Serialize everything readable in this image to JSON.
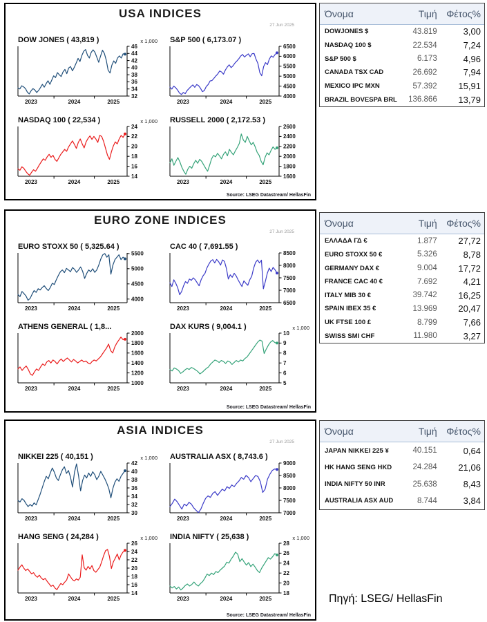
{
  "page": {
    "background": "#ffffff",
    "footer_source": "Πηγή: LSEG/ HellasFin"
  },
  "panels": [
    {
      "title": "USA INDICES",
      "date": "27 Jun 2025",
      "source": "Source: LSEG Datastream/ HellasFin",
      "table": {
        "headers": [
          "Όνομα",
          "Τιμή",
          "Φέτος%"
        ],
        "rows": [
          [
            "DOWJONES $",
            "43.819",
            "3,00"
          ],
          [
            "NASDAQ 100 $",
            "22.534",
            "7,24"
          ],
          [
            "S&P 500 $",
            "6.173",
            "4,96"
          ],
          [
            "CANADA TSX CAD",
            "26.692",
            "7,94"
          ],
          [
            "MEXICO IPC MXN",
            "57.392",
            "15,91"
          ],
          [
            "BRAZIL BOVESPA BRL",
            "136.866",
            "13,79"
          ]
        ]
      }
    },
    {
      "title": "EURO ZONE INDICES",
      "date": "27 Jun 2025",
      "source": "Source: LSEG Datastream/ HellasFin",
      "table": {
        "headers": [
          "Όνομα",
          "Τιμή",
          "Φέτος%"
        ],
        "rows": [
          [
            "ΕΛΛΑΔΑ ΓΔ €",
            "1.877",
            "27,72"
          ],
          [
            "EURO STOXX 50 €",
            "5.326",
            "8,78"
          ],
          [
            "GERMANY DAX €",
            "9.004",
            "17,72"
          ],
          [
            "FRANCE CAC 40 €",
            "7.692",
            "4,21"
          ],
          [
            "ITALY MIB 30 €",
            "39.742",
            "16,25"
          ],
          [
            "SPAIN IBEX 35 €",
            "13.969",
            "20,47"
          ],
          [
            "UK FTSE 100 £",
            "8.799",
            "7,66"
          ],
          [
            "SWISS SMI CHF",
            "11.980",
            "3,27"
          ]
        ]
      }
    },
    {
      "title": "ASIA INDICES",
      "date": "27 Jun 2025",
      "source": "Source: LSEG Datastream/ HellasFin",
      "table": {
        "headers": [
          "Όνομα",
          "Τιμή",
          "Φέτος%"
        ],
        "rows": [
          [
            "JAPAN NIKKEI 225 ¥",
            "40.151",
            "0,64"
          ],
          [
            "HK HANG SENG HKD",
            "24.284",
            "21,06"
          ],
          [
            "INDIA NIFTY 50 INR",
            "25.638",
            "8,43"
          ],
          [
            "AUSTRALIA ASX AUD",
            "8.744",
            "3,84"
          ]
        ]
      }
    }
  ],
  "chart_data": [
    {
      "id": "dow-jones",
      "panel": 0,
      "type": "line",
      "title": "DOW JONES ( 43,819 )",
      "unit": "x 1,000",
      "color": "#1f4e79",
      "x_labels": [
        "2023",
        "2024",
        "2025"
      ],
      "ylim": [
        32,
        46
      ],
      "yticks": [
        "46",
        "44",
        "42",
        "40",
        "38",
        "36",
        "34",
        "32"
      ],
      "values": [
        34.3,
        34.0,
        34.9,
        34.6,
        34.1,
        33.1,
        32.6,
        33.5,
        34.1,
        33.7,
        33.0,
        33.6,
        34.4,
        35.3,
        34.5,
        35.5,
        36.3,
        35.3,
        36.5,
        37.7,
        37.2,
        38.6,
        38.0,
        37.5,
        38.8,
        39.5,
        38.3,
        39.9,
        40.3,
        39.1,
        40.1,
        41.3,
        42.6,
        41.7,
        43.4,
        44.6,
        45.1,
        43.5,
        42.7,
        44.3,
        45.0,
        44.3,
        42.9,
        41.5,
        43.3,
        44.9,
        44.0,
        42.1,
        39.3,
        38.5,
        40.7,
        41.9,
        41.2,
        42.7,
        43.3,
        42.7,
        43.9,
        43.8
      ]
    },
    {
      "id": "sp-500",
      "panel": 0,
      "type": "line",
      "title": "S&P 500  ( 6,173.07 )",
      "unit": "",
      "color": "#3b3bc8",
      "x_labels": [
        "2023",
        "2024",
        "2025"
      ],
      "ylim": [
        4000,
        6500
      ],
      "yticks": [
        "6500",
        "6000",
        "5500",
        "5000",
        "4500",
        "4000"
      ],
      "values": [
        4450,
        4350,
        4500,
        4420,
        4300,
        4150,
        4080,
        4180,
        4120,
        4280,
        4380,
        4480,
        4560,
        4440,
        4580,
        4520,
        4390,
        4220,
        4280,
        4480,
        4580,
        4760,
        4780,
        4890,
        5010,
        5110,
        5260,
        5210,
        5100,
        5310,
        5460,
        5570,
        5430,
        5520,
        5660,
        5760,
        5870,
        6010,
        6090,
        5960,
        6050,
        6120,
        5980,
        6130,
        6140,
        5860,
        5640,
        5180,
        5020,
        5480,
        5680,
        5580,
        5860,
        6020,
        5950,
        6090,
        6173
      ]
    },
    {
      "id": "nasdaq-100",
      "panel": 0,
      "type": "line",
      "title": "NASDAQ 100 ( 22,534 )",
      "unit": "x 1,000",
      "color": "#ea1c1c",
      "x_labels": [
        "2023",
        "2024",
        "2025"
      ],
      "ylim": [
        14,
        24
      ],
      "yticks": [
        "24",
        "22",
        "20",
        "18",
        "16",
        "14"
      ],
      "values": [
        15.5,
        15.2,
        15.9,
        15.6,
        15.0,
        14.5,
        14.2,
        14.8,
        15.3,
        15.0,
        15.6,
        16.3,
        16.9,
        17.5,
        17.2,
        17.9,
        18.4,
        17.8,
        18.2,
        17.4,
        17.0,
        17.7,
        18.4,
        18.9,
        19.4,
        19.0,
        19.9,
        20.5,
        21.1,
        20.4,
        19.6,
        20.8,
        21.5,
        20.5,
        19.7,
        20.9,
        21.6,
        22.1,
        21.4,
        22.0,
        21.5,
        20.8,
        22.2,
        22.0,
        21.0,
        19.6,
        18.2,
        17.4,
        18.9,
        20.1,
        20.9,
        20.5,
        21.5,
        22.2,
        21.8,
        22.5
      ]
    },
    {
      "id": "russell-2000",
      "panel": 0,
      "type": "line",
      "title": "RUSSELL 2000  ( 2,172.53 )",
      "unit": "",
      "color": "#35a379",
      "x_labels": [
        "2023",
        "2024",
        "2025"
      ],
      "ylim": [
        1600,
        2600
      ],
      "yticks": [
        "2600",
        "2400",
        "2200",
        "2000",
        "1800",
        "1600"
      ],
      "values": [
        1870,
        1950,
        1820,
        1900,
        1975,
        1890,
        1780,
        1700,
        1640,
        1740,
        1800,
        1760,
        1850,
        1920,
        1860,
        1940,
        1900,
        1830,
        1760,
        1700,
        1820,
        1950,
        2020,
        1990,
        2060,
        2010,
        1950,
        2040,
        2090,
        2010,
        2140,
        2080,
        2030,
        2110,
        2180,
        2260,
        2450,
        2330,
        2280,
        2400,
        2310,
        2230,
        2280,
        2190,
        2080,
        2020,
        1900,
        1830,
        1980,
        2070,
        2030,
        2120,
        2190,
        2140,
        2172
      ]
    },
    {
      "id": "euro-stoxx-50",
      "panel": 1,
      "type": "line",
      "title": "EURO STOXX 50 ( 5,325.64 )",
      "unit": "",
      "color": "#1f4e79",
      "x_labels": [
        "2023",
        "2024",
        "2025"
      ],
      "ylim": [
        3880,
        5520
      ],
      "yticks": [
        "5500",
        "5000",
        "4500",
        "4000"
      ],
      "values": [
        4150,
        4080,
        4250,
        4180,
        4100,
        3960,
        4020,
        4160,
        4280,
        4220,
        4340,
        4300,
        4380,
        4440,
        4350,
        4280,
        4380,
        4520,
        4480,
        4640,
        4780,
        4900,
        4960,
        4870,
        5010,
        4960,
        4900,
        5040,
        4980,
        4880,
        4960,
        5060,
        4920,
        4680,
        4840,
        4960,
        4900,
        5000,
        4880,
        4960,
        5120,
        5320,
        5460,
        5500,
        5380,
        5460,
        4820,
        5120,
        5300,
        5380,
        5460,
        5300,
        5380,
        5326
      ]
    },
    {
      "id": "cac-40",
      "panel": 1,
      "type": "line",
      "title": "CAC 40  ( 7,691.55 )",
      "unit": "",
      "color": "#3b3bc8",
      "x_labels": [
        "2023",
        "2024",
        "2025"
      ],
      "ylim": [
        6500,
        8500
      ],
      "yticks": [
        "8500",
        "8000",
        "7500",
        "7000",
        "6500"
      ],
      "values": [
        7300,
        7150,
        7420,
        7280,
        7100,
        6820,
        6950,
        7180,
        7350,
        7280,
        7450,
        7400,
        7500,
        7420,
        7300,
        7180,
        7420,
        7580,
        7680,
        7900,
        8050,
        8180,
        8230,
        8100,
        8240,
        8150,
        8010,
        8220,
        8160,
        7880,
        7450,
        7620,
        7520,
        7680,
        7580,
        7420,
        7280,
        7150,
        7380,
        7280,
        7200,
        7420,
        7560,
        7890,
        8120,
        8220,
        8100,
        8210,
        7060,
        7350,
        7680,
        7890,
        7750,
        7920,
        7820,
        7692
      ]
    },
    {
      "id": "athens-general",
      "panel": 1,
      "type": "line",
      "title": "ATHENS GENERAL ( 1,8...",
      "unit": "",
      "color": "#ea1c1c",
      "x_labels": [
        "2023",
        "2024",
        "2025"
      ],
      "ylim": [
        1000,
        2000
      ],
      "yticks": [
        "2000",
        "1800",
        "1600",
        "1400",
        "1200",
        "1000"
      ],
      "values": [
        1280,
        1320,
        1250,
        1300,
        1340,
        1270,
        1180,
        1150,
        1220,
        1280,
        1250,
        1320,
        1380,
        1350,
        1420,
        1450,
        1400,
        1460,
        1430,
        1380,
        1440,
        1480,
        1430,
        1470,
        1500,
        1460,
        1420,
        1470,
        1440,
        1400,
        1430,
        1460,
        1420,
        1440,
        1400,
        1380,
        1430,
        1460,
        1440,
        1480,
        1520,
        1580,
        1640,
        1700,
        1780,
        1650,
        1600,
        1720,
        1800,
        1860,
        1920,
        1870,
        1877
      ]
    },
    {
      "id": "dax-kurs",
      "panel": 1,
      "type": "line",
      "title": "DAX KURS  ( 9,004.1 )",
      "unit": "x 1,000",
      "color": "#35a379",
      "x_labels": [
        "2023",
        "2024",
        "2025"
      ],
      "ylim": [
        5,
        10
      ],
      "yticks": [
        "10",
        "9",
        "8",
        "7",
        "6",
        "5"
      ],
      "values": [
        6.35,
        6.2,
        6.5,
        6.4,
        6.25,
        5.95,
        6.1,
        6.3,
        6.45,
        6.35,
        6.55,
        6.45,
        6.3,
        6.15,
        5.9,
        6.05,
        6.25,
        6.45,
        6.6,
        6.9,
        7.1,
        7.3,
        7.2,
        7.05,
        7.25,
        7.15,
        6.95,
        7.2,
        7.1,
        6.85,
        7.05,
        7.25,
        7.1,
        7.3,
        7.2,
        7.45,
        7.6,
        7.9,
        8.2,
        8.5,
        8.8,
        9.1,
        9.3,
        9.2,
        7.95,
        8.4,
        8.8,
        9.1,
        9.25,
        9.05,
        9.0
      ]
    },
    {
      "id": "nikkei-225",
      "panel": 2,
      "type": "line",
      "title": "NIKKEI 225 ( 40,151 )",
      "unit": "x 1,000",
      "color": "#1f4e79",
      "x_labels": [
        "2023",
        "2024",
        "2025"
      ],
      "ylim": [
        30,
        42
      ],
      "yticks": [
        "42",
        "40",
        "38",
        "36",
        "34",
        "32",
        "30"
      ],
      "values": [
        33.0,
        32.6,
        33.4,
        33.0,
        32.2,
        31.5,
        32.0,
        31.6,
        32.4,
        31.9,
        33.2,
        34.5,
        36.0,
        37.5,
        38.8,
        38.2,
        39.6,
        40.8,
        39.8,
        38.4,
        37.8,
        39.2,
        40.4,
        41.1,
        39.5,
        40.2,
        38.6,
        36.2,
        39.8,
        41.8,
        38.9,
        35.3,
        37.8,
        39.1,
        38.4,
        39.6,
        38.8,
        39.9,
        39.2,
        38.0,
        38.8,
        40.0,
        39.1,
        38.2,
        37.1,
        35.8,
        33.6,
        35.9,
        37.4,
        38.2,
        37.6,
        38.8,
        39.5,
        40.15
      ]
    },
    {
      "id": "australia-asx",
      "panel": 2,
      "type": "line",
      "title": "AUSTRALIA ASX  ( 8,743.6 )",
      "unit": "",
      "color": "#3b3bc8",
      "x_labels": [
        "2023",
        "2024",
        "2025"
      ],
      "ylim": [
        7000,
        9000
      ],
      "yticks": [
        "9000",
        "8500",
        "8000",
        "7500",
        "7000"
      ],
      "values": [
        7250,
        7380,
        7550,
        7450,
        7300,
        7150,
        7350,
        7280,
        7420,
        7350,
        7200,
        7100,
        7010,
        7150,
        7380,
        7580,
        7680,
        7620,
        7780,
        7850,
        7700,
        7830,
        7950,
        7880,
        8050,
        7980,
        8120,
        8050,
        8180,
        8280,
        8420,
        8350,
        8500,
        8420,
        8250,
        8380,
        8500,
        8460,
        8250,
        7820,
        7950,
        8350,
        8550,
        8700,
        8760,
        8744
      ]
    },
    {
      "id": "hang-seng",
      "panel": 2,
      "type": "line",
      "title": "HANG SENG ( 24,284 )",
      "unit": "x 1,000",
      "color": "#ea1c1c",
      "x_labels": [
        "2023",
        "2024",
        "2025"
      ],
      "ylim": [
        14,
        26
      ],
      "yticks": [
        "26",
        "24",
        "22",
        "20",
        "18",
        "16",
        "14"
      ],
      "values": [
        19.5,
        20.2,
        20.8,
        20.0,
        19.4,
        19.8,
        19.2,
        18.6,
        18.9,
        18.2,
        17.8,
        18.3,
        17.6,
        17.2,
        17.5,
        16.8,
        16.2,
        15.6,
        15.9,
        15.2,
        14.8,
        15.6,
        16.3,
        16.0,
        16.6,
        17.1,
        18.6,
        17.9,
        17.2,
        16.9,
        17.4,
        17.1,
        17.8,
        23.2,
        20.1,
        19.5,
        20.4,
        19.8,
        20.6,
        19.4,
        19.0,
        19.6,
        20.2,
        21.5,
        23.0,
        24.2,
        24.5,
        22.8,
        19.9,
        21.5,
        22.4,
        23.4,
        22.0,
        23.2,
        23.9,
        24.28
      ]
    },
    {
      "id": "india-nifty",
      "panel": 2,
      "type": "line",
      "title": "INDIA NIFTY  ( 25,638 )",
      "unit": "x 1,000",
      "color": "#35a379",
      "x_labels": [
        "2023",
        "2024",
        "2025"
      ],
      "ylim": [
        18,
        28
      ],
      "yticks": [
        "28",
        "26",
        "24",
        "22",
        "20",
        "18"
      ],
      "values": [
        19.4,
        19.0,
        19.3,
        18.8,
        19.2,
        18.6,
        19.0,
        19.5,
        19.8,
        19.4,
        19.7,
        20.2,
        19.7,
        19.4,
        19.9,
        20.3,
        21.0,
        21.8,
        21.5,
        22.0,
        21.7,
        22.3,
        22.1,
        22.6,
        23.0,
        23.4,
        24.2,
        24.0,
        24.8,
        25.4,
        26.2,
        25.8,
        24.3,
        24.9,
        24.2,
        23.6,
        24.1,
        23.3,
        23.8,
        23.2,
        22.5,
        22.1,
        23.0,
        23.7,
        24.4,
        25.1,
        24.8,
        25.3,
        25.9,
        25.64
      ]
    }
  ]
}
